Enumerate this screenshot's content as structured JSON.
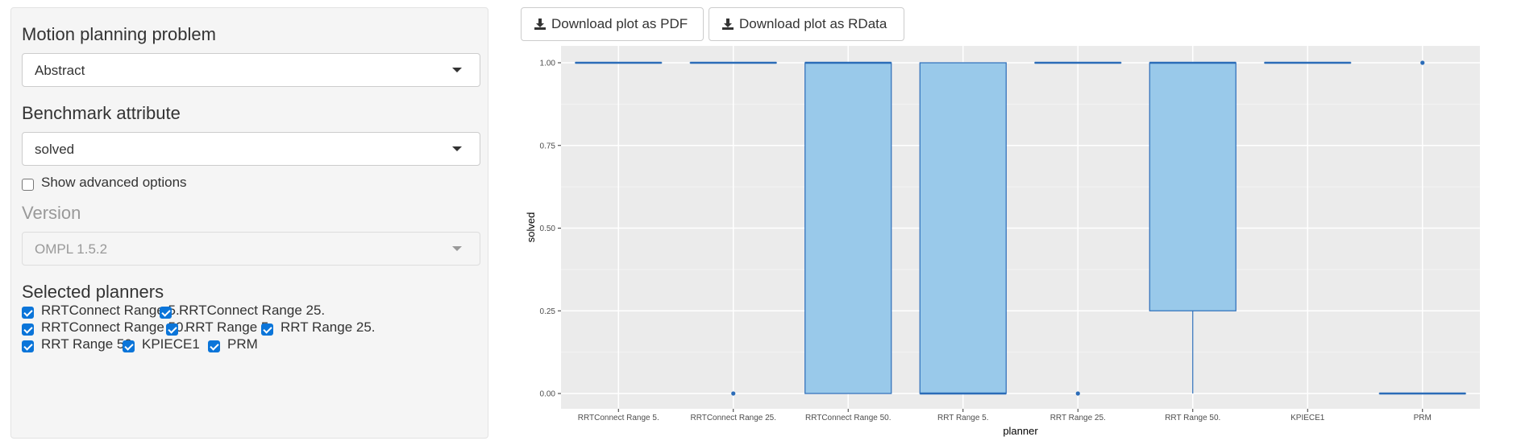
{
  "sidebar": {
    "problem_label": "Motion planning problem",
    "problem_value": "Abstract",
    "attribute_label": "Benchmark attribute",
    "attribute_value": "solved",
    "advanced_label": "Show advanced options",
    "advanced_checked": false,
    "version_label": "Version",
    "version_value": "OMPL 1.5.2",
    "planners_label": "Selected planners",
    "planners": [
      {
        "label": "RRTConnect Range 5.",
        "checked": true
      },
      {
        "label": "RRTConnect Range 25.",
        "checked": true
      },
      {
        "label": "RRTConnect Range 50.",
        "checked": true
      },
      {
        "label": "RRT Range 5.",
        "checked": true
      },
      {
        "label": "RRT Range 25.",
        "checked": true
      },
      {
        "label": "RRT Range 50.",
        "checked": true
      },
      {
        "label": "KPIECE1",
        "checked": true
      },
      {
        "label": "PRM",
        "checked": true
      }
    ]
  },
  "toolbar": {
    "pdf_label": "Download plot as PDF",
    "rdata_label": "Download plot as RData",
    "download_icon": "download-icon"
  },
  "colors": {
    "box_fill": "#99c9ea",
    "box_stroke": "#2b6cb8",
    "panel_bg": "#ebebeb",
    "checkbox": "#0b75d9"
  },
  "chart_data": {
    "type": "boxplot",
    "xlabel": "planner",
    "ylabel": "solved",
    "ylim": [
      0,
      1
    ],
    "yticks": [
      "0.00",
      "0.25",
      "0.50",
      "0.75",
      "1.00"
    ],
    "grid": true,
    "categories": [
      "RRTConnect Range 5.",
      "RRTConnect Range 25.",
      "RRTConnect Range 50.",
      "RRT Range 5.",
      "RRT Range 25.",
      "RRT Range 50.",
      "KPIECE1",
      "PRM"
    ],
    "boxes": [
      {
        "q1": 1,
        "median": 1,
        "q3": 1,
        "whisker_low": 1,
        "whisker_high": 1,
        "outliers": []
      },
      {
        "q1": 1,
        "median": 1,
        "q3": 1,
        "whisker_low": 1,
        "whisker_high": 1,
        "outliers": [
          0
        ]
      },
      {
        "q1": 0,
        "median": 1,
        "q3": 1,
        "whisker_low": 0,
        "whisker_high": 1,
        "outliers": []
      },
      {
        "q1": 0,
        "median": 0,
        "q3": 1,
        "whisker_low": 0,
        "whisker_high": 1,
        "outliers": []
      },
      {
        "q1": 1,
        "median": 1,
        "q3": 1,
        "whisker_low": 1,
        "whisker_high": 1,
        "outliers": [
          0
        ]
      },
      {
        "q1": 0.25,
        "median": 1,
        "q3": 1,
        "whisker_low": 0,
        "whisker_high": 1,
        "outliers": []
      },
      {
        "q1": 1,
        "median": 1,
        "q3": 1,
        "whisker_low": 1,
        "whisker_high": 1,
        "outliers": []
      },
      {
        "q1": 0,
        "median": 0,
        "q3": 0,
        "whisker_low": 0,
        "whisker_high": 0,
        "outliers": [
          1
        ]
      }
    ]
  }
}
